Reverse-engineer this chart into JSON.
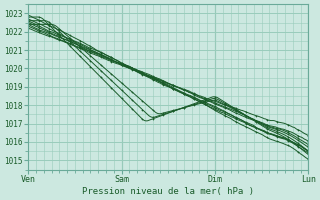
{
  "title": "",
  "xlabel": "Pression niveau de la mer( hPa )",
  "background_color": "#cce8e0",
  "grid_color": "#99ccbb",
  "line_color": "#1a5c2a",
  "text_color": "#1a5c2a",
  "ylim": [
    1014.5,
    1023.5
  ],
  "yticks": [
    1015,
    1016,
    1017,
    1018,
    1019,
    1020,
    1021,
    1022,
    1023
  ],
  "xtick_labels": [
    "Ven",
    "Sam",
    "Dim",
    "Lun"
  ],
  "xtick_positions": [
    0,
    72,
    144,
    216
  ],
  "x_total": 216,
  "figsize": [
    3.2,
    2.0
  ],
  "dpi": 100
}
